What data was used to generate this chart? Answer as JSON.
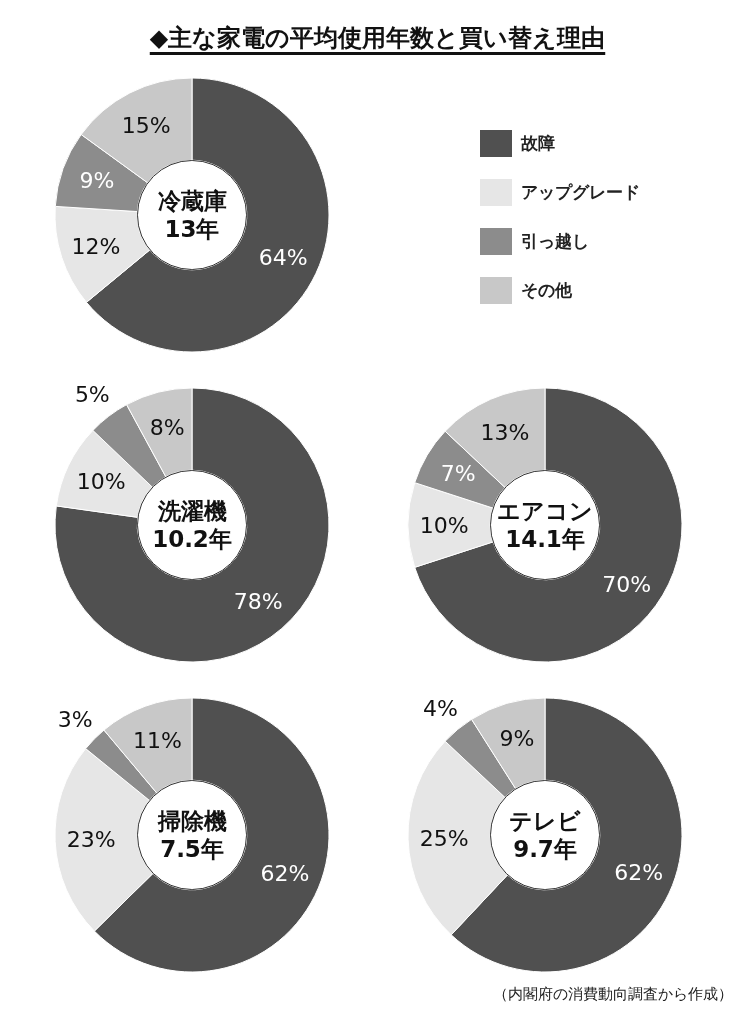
{
  "chart_data": [
    {
      "type": "donut",
      "title": "冷蔵庫",
      "subtitle": "13年",
      "categories": [
        "故障",
        "アップグレード",
        "引っ越し",
        "その他"
      ],
      "values": [
        64,
        12,
        9,
        15
      ],
      "colors": [
        "#505050",
        "#e6e6e6",
        "#8c8c8c",
        "#c8c8c8"
      ],
      "value_labels": [
        "64%",
        "12%",
        "9%",
        "15%"
      ],
      "legend": "right",
      "annotations": [
        "◆主な家電の平均使用年数と買い替え理由"
      ]
    },
    {
      "type": "donut",
      "title": "洗濯機",
      "subtitle": "10.2年",
      "categories": [
        null,
        null,
        null,
        null
      ],
      "values": [
        78,
        10,
        5,
        8
      ],
      "colors": [
        "#505050",
        "#e6e6e6",
        "#8c8c8c",
        "#c8c8c8"
      ],
      "value_labels": [
        "78%",
        "10%",
        "5%",
        "8%"
      ]
    },
    {
      "type": "donut",
      "title": "エアコン",
      "subtitle": "14.1年",
      "categories": [
        null,
        null,
        null,
        null
      ],
      "values": [
        70,
        10,
        7,
        13
      ],
      "colors": [
        "#505050",
        "#e6e6e6",
        "#8c8c8c",
        "#c8c8c8"
      ],
      "value_labels": [
        "70%",
        "10%",
        "7%",
        "13%"
      ]
    },
    {
      "type": "donut",
      "title": "掃除機",
      "subtitle": "7.5年",
      "categories": [
        null,
        null,
        null,
        null
      ],
      "values": [
        62,
        23,
        3,
        11
      ],
      "colors": [
        "#505050",
        "#e6e6e6",
        "#8c8c8c",
        "#c8c8c8"
      ],
      "value_labels": [
        "62%",
        "23%",
        "3%",
        "11%"
      ]
    },
    {
      "type": "donut",
      "title": "テレビ",
      "subtitle": "9.7年",
      "categories": [
        null,
        null,
        null,
        null
      ],
      "values": [
        62,
        25,
        4,
        9
      ],
      "colors": [
        "#505050",
        "#e6e6e6",
        "#8c8c8c",
        "#c8c8c8"
      ],
      "value_labels": [
        "62%",
        "25%",
        "4%",
        "9%"
      ],
      "annotations": [
        "（内閣府の消費動向調査から作成）"
      ]
    }
  ]
}
